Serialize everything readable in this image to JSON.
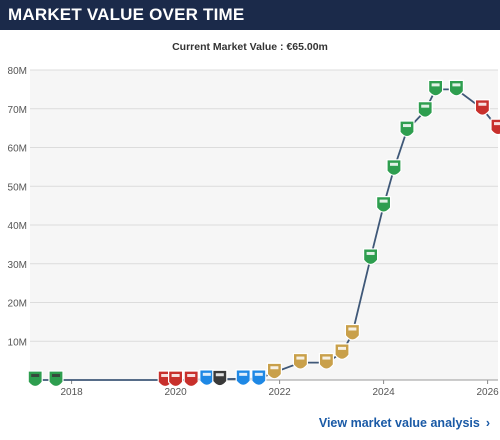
{
  "header": {
    "title": "MARKET VALUE OVER TIME"
  },
  "subtitle": "Current Market Value : €65.00m",
  "footer": {
    "link_label": "View market value analysis",
    "chevron": "›"
  },
  "colors": {
    "header_bg": "#1b2a4a",
    "line": "#3f5878",
    "badge_green": "#2e9e4f",
    "badge_red": "#c8302c",
    "badge_blue": "#1e88e5",
    "badge_gold": "#c9a04a",
    "badge_dark": "#3a3a3a"
  },
  "chart_data": {
    "type": "line",
    "title": "",
    "xlabel": "",
    "ylabel": "",
    "ylim": [
      0,
      80
    ],
    "xlim": [
      2017.2,
      2026.2
    ],
    "y_ticks": [
      {
        "value": 10,
        "label": "10M"
      },
      {
        "value": 20,
        "label": "20M"
      },
      {
        "value": 30,
        "label": "30M"
      },
      {
        "value": 40,
        "label": "40M"
      },
      {
        "value": 50,
        "label": "50M"
      },
      {
        "value": 60,
        "label": "60M"
      },
      {
        "value": 70,
        "label": "70M"
      },
      {
        "value": 80,
        "label": "80M"
      }
    ],
    "x_ticks": [
      {
        "value": 2018,
        "label": "2018"
      },
      {
        "value": 2020,
        "label": "2020"
      },
      {
        "value": 2022,
        "label": "2022"
      },
      {
        "value": 2024,
        "label": "2024"
      },
      {
        "value": 2026,
        "label": "2026"
      }
    ],
    "grid": true,
    "series": [
      {
        "points": [
          {
            "x": 2017.3,
            "y": 0.0,
            "badge": "green-dark"
          },
          {
            "x": 2017.7,
            "y": 0.0,
            "badge": "green-dark"
          },
          {
            "x": 2019.8,
            "y": 0.0,
            "badge": "red"
          },
          {
            "x": 2020.0,
            "y": 0.0,
            "badge": "red"
          },
          {
            "x": 2020.3,
            "y": 0.0,
            "badge": "red"
          },
          {
            "x": 2020.6,
            "y": 0.3,
            "badge": "blue"
          },
          {
            "x": 2020.85,
            "y": 0.2,
            "badge": "dark"
          },
          {
            "x": 2021.3,
            "y": 0.3,
            "badge": "blue"
          },
          {
            "x": 2021.6,
            "y": 0.3,
            "badge": "blue"
          },
          {
            "x": 2021.9,
            "y": 2.0,
            "badge": "gold"
          },
          {
            "x": 2022.4,
            "y": 4.5,
            "badge": "gold"
          },
          {
            "x": 2022.9,
            "y": 4.5,
            "badge": "gold"
          },
          {
            "x": 2023.2,
            "y": 7.0,
            "badge": "gold"
          },
          {
            "x": 2023.4,
            "y": 12.0,
            "badge": "gold"
          },
          {
            "x": 2023.75,
            "y": 31.5,
            "badge": "green"
          },
          {
            "x": 2024.0,
            "y": 45.0,
            "badge": "green"
          },
          {
            "x": 2024.2,
            "y": 54.5,
            "badge": "green"
          },
          {
            "x": 2024.45,
            "y": 64.5,
            "badge": "green"
          },
          {
            "x": 2024.8,
            "y": 69.5,
            "badge": "green"
          },
          {
            "x": 2025.0,
            "y": 75.0,
            "badge": "green"
          },
          {
            "x": 2025.4,
            "y": 75.0,
            "badge": "green"
          },
          {
            "x": 2025.9,
            "y": 70.0,
            "badge": "red"
          },
          {
            "x": 2026.2,
            "y": 65.0,
            "badge": "red"
          }
        ]
      }
    ]
  }
}
